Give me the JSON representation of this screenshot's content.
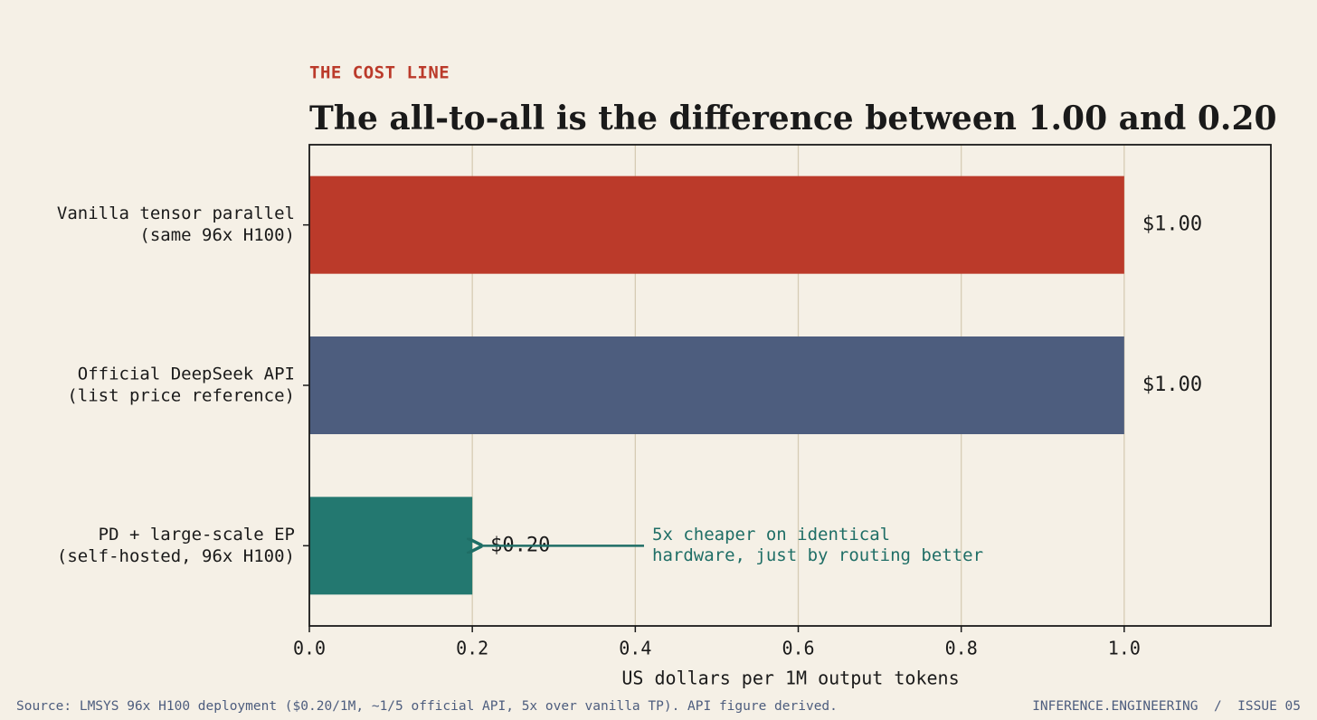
{
  "chart_data": {
    "type": "barh",
    "kicker": "THE COST LINE",
    "title": "The all-to-all is the difference between 1.00 and 0.20",
    "categories": [
      [
        "Vanilla tensor parallel",
        "(same 96x H100)"
      ],
      [
        "Official DeepSeek API",
        "(list price reference)"
      ],
      [
        "PD + large-scale EP",
        "(self-hosted, 96x H100)"
      ]
    ],
    "values": [
      1.0,
      1.0,
      0.2
    ],
    "value_labels": [
      "$1.00",
      "$1.00",
      "$0.20"
    ],
    "colors": [
      "#bb3a2a",
      "#4d5d7e",
      "#237870"
    ],
    "xlim": [
      0,
      1.18
    ],
    "xticks": [
      {
        "value": 0,
        "label": "0.0"
      },
      0.2,
      0.4,
      0.6,
      0.8,
      {
        "value": 1,
        "label": "1.0"
      }
    ],
    "xlabel": "US dollars per 1M output tokens",
    "grid": true,
    "annotation": {
      "lines": [
        "5x cheaper on identical",
        "hardware, just by routing better"
      ],
      "color": "#1f6e66"
    },
    "source": "Source: LMSYS 96x H100 deployment ($0.20/1M, ~1/5 official API, 5x over vanilla TP). API figure derived.",
    "footer": "INFERENCE.ENGINEERING  /  ISSUE 05"
  }
}
